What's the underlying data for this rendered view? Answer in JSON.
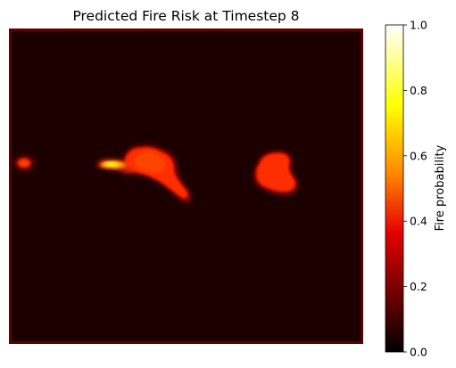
{
  "chart_data": [
    {
      "type": "heatmap",
      "title": "Predicted Fire Risk at Timestep 8",
      "colormap": "hot",
      "colormap_stops": [
        "#000000",
        "#e50000",
        "#ff8a00",
        "#ffff00",
        "#ffffff"
      ],
      "background_value": 0.06,
      "xlabel": "",
      "ylabel": "",
      "axes_visible": false,
      "colorbar": {
        "label": "Fire probability",
        "range": [
          0,
          1
        ],
        "ticks": [
          0.0,
          0.2,
          0.4,
          0.6,
          0.8,
          1.0
        ],
        "tick_labels": [
          "0.0",
          "0.2",
          "0.4",
          "0.6",
          "0.8",
          "1.0"
        ]
      },
      "hotspots": [
        {
          "name": "left-edge spot",
          "peak_probability": 0.5
        },
        {
          "name": "central streak",
          "peak_probability": 0.65
        },
        {
          "name": "central plume",
          "peak_probability": 0.5
        },
        {
          "name": "right cluster",
          "peak_probability": 0.5
        }
      ]
    }
  ]
}
